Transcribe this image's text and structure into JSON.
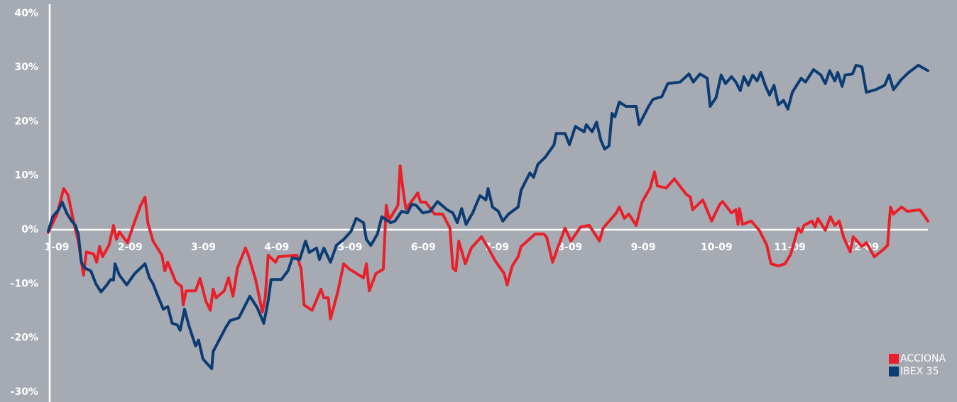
{
  "chart_data": {
    "type": "line",
    "ylim": [
      -30,
      40
    ],
    "yticks": [
      {
        "value": -30,
        "label": "-30%"
      },
      {
        "value": -20,
        "label": "-20%"
      },
      {
        "value": -10,
        "label": "-10%"
      },
      {
        "value": 0,
        "label": "0%"
      },
      {
        "value": 10,
        "label": "10%"
      },
      {
        "value": 20,
        "label": "20%"
      },
      {
        "value": 30,
        "label": "30%"
      },
      {
        "value": 40,
        "label": "40%"
      }
    ],
    "xlim": [
      0,
      12
    ],
    "xticks": [
      {
        "value": 0,
        "label": "1-09"
      },
      {
        "value": 1,
        "label": "2-09"
      },
      {
        "value": 2,
        "label": "3-09"
      },
      {
        "value": 3,
        "label": "4-09"
      },
      {
        "value": 4,
        "label": "5-09"
      },
      {
        "value": 5,
        "label": "6-09"
      },
      {
        "value": 6,
        "label": "7-09"
      },
      {
        "value": 7,
        "label": "8-09"
      },
      {
        "value": 8,
        "label": "9-09"
      },
      {
        "value": 9,
        "label": "10-09"
      },
      {
        "value": 10,
        "label": "11-09"
      },
      {
        "value": 11,
        "label": "12-09"
      }
    ],
    "legend": "lower right",
    "series": [
      {
        "name": "ACCIONA",
        "color": "#e8202a",
        "x": [
          0,
          0.12,
          0.21,
          0.27,
          0.35,
          0.41,
          0.48,
          0.52,
          0.62,
          0.66,
          0.7,
          0.74,
          0.83,
          0.89,
          0.93,
          0.97,
          1.08,
          1.16,
          1.26,
          1.32,
          1.36,
          1.43,
          1.55,
          1.59,
          1.63,
          1.74,
          1.82,
          1.84,
          1.88,
          2.01,
          2.07,
          2.15,
          2.21,
          2.25,
          2.29,
          2.4,
          2.46,
          2.52,
          2.58,
          2.69,
          2.73,
          2.83,
          2.92,
          2.96,
          3.0,
          3.1,
          3.14,
          3.39,
          3.45,
          3.49,
          3.6,
          3.72,
          3.76,
          3.82,
          3.85,
          3.95,
          4.03,
          4.11,
          4.3,
          4.34,
          4.38,
          4.47,
          4.57,
          4.61,
          4.65,
          4.77,
          4.8,
          4.84,
          4.88,
          5.04,
          5.08,
          5.15,
          5.27,
          5.38,
          5.48,
          5.52,
          5.56,
          5.6,
          5.69,
          5.77,
          5.91,
          5.99,
          6.1,
          6.22,
          6.26,
          6.33,
          6.41,
          6.45,
          6.64,
          6.76,
          6.8,
          6.88,
          6.93,
          7.05,
          7.13,
          7.26,
          7.38,
          7.52,
          7.57,
          7.75,
          7.79,
          7.86,
          7.92,
          8.02,
          8.1,
          8.21,
          8.27,
          8.31,
          8.43,
          8.54,
          8.7,
          8.76,
          8.79,
          8.93,
          9.05,
          9.16,
          9.2,
          9.32,
          9.38,
          9.41,
          9.43,
          9.47,
          9.59,
          9.7,
          9.8,
          9.86,
          9.96,
          10.05,
          10.13,
          10.23,
          10.27,
          10.31,
          10.42,
          10.46,
          10.5,
          10.6,
          10.67,
          10.73,
          10.79,
          10.85,
          10.94,
          10.98,
          11.1,
          11.16,
          11.27,
          11.39,
          11.45,
          11.49,
          11.53,
          11.64,
          11.72,
          11.89,
          11.95,
          12.0
        ],
        "values": [
          -0.5,
          2.9,
          7.6,
          6.4,
          1.2,
          -2.1,
          -8.4,
          -4.1,
          -4.5,
          -6.0,
          -3.1,
          -5.0,
          -2.8,
          0.8,
          -1.8,
          -0.4,
          -2.4,
          0.8,
          4.5,
          6.0,
          1.2,
          -2.1,
          -4.7,
          -7.6,
          -6.0,
          -9.7,
          -10.5,
          -13.9,
          -11.3,
          -11.3,
          -9.0,
          -13.2,
          -14.9,
          -11.0,
          -12.6,
          -11.3,
          -8.9,
          -12.3,
          -7.1,
          -3.4,
          -4.7,
          -9.3,
          -15.2,
          -12.6,
          -4.7,
          -6.0,
          -5.0,
          -4.7,
          -7.3,
          -13.9,
          -14.9,
          -11.0,
          -12.6,
          -12.6,
          -16.5,
          -11.5,
          -6.3,
          -7.3,
          -8.9,
          -6.3,
          -11.3,
          -8.1,
          -7.3,
          4.5,
          1.8,
          4.5,
          11.8,
          7.3,
          3.8,
          6.8,
          5.1,
          5.1,
          2.9,
          2.9,
          0.3,
          -7.1,
          -7.6,
          -2.1,
          -6.3,
          -3.4,
          -1.3,
          -3.1,
          -5.8,
          -8.1,
          -10.2,
          -6.7,
          -5.0,
          -3.1,
          -0.8,
          -0.8,
          -1.4,
          -6.0,
          -4.1,
          0.3,
          -2.1,
          0.5,
          0.8,
          -2.1,
          0.3,
          3.1,
          4.2,
          2.1,
          2.9,
          0.8,
          5.1,
          7.7,
          10.7,
          8.1,
          7.7,
          9.4,
          6.6,
          6.0,
          3.7,
          5.5,
          1.6,
          4.7,
          5.2,
          3.1,
          3.7,
          1.0,
          3.9,
          1.0,
          1.6,
          -0.1,
          -2.8,
          -6.3,
          -6.7,
          -6.3,
          -4.5,
          0.3,
          -0.5,
          0.8,
          1.6,
          0.5,
          2.1,
          -0.1,
          2.4,
          0.8,
          1.6,
          -1.4,
          -4.1,
          -1.3,
          -3.1,
          -2.4,
          -5.0,
          -3.7,
          -2.9,
          4.2,
          2.9,
          4.2,
          3.4,
          3.7,
          2.6,
          1.6
        ]
      },
      {
        "name": "IBEX 35",
        "color": "#0b3c73",
        "x": [
          0,
          0.06,
          0.14,
          0.19,
          0.25,
          0.31,
          0.37,
          0.41,
          0.45,
          0.5,
          0.58,
          0.65,
          0.72,
          0.8,
          0.85,
          0.89,
          0.91,
          0.97,
          1.07,
          1.18,
          1.32,
          1.38,
          1.43,
          1.49,
          1.57,
          1.63,
          1.69,
          1.76,
          1.8,
          1.86,
          1.92,
          2.01,
          2.05,
          2.11,
          2.23,
          2.25,
          2.3,
          2.42,
          2.48,
          2.6,
          2.75,
          2.85,
          2.94,
          3.0,
          3.04,
          3.18,
          3.27,
          3.33,
          3.43,
          3.51,
          3.56,
          3.66,
          3.7,
          3.76,
          3.85,
          3.93,
          4.03,
          4.13,
          4.2,
          4.3,
          4.34,
          4.4,
          4.49,
          4.55,
          4.67,
          4.73,
          4.82,
          4.9,
          4.96,
          5.02,
          5.11,
          5.21,
          5.31,
          5.44,
          5.52,
          5.58,
          5.64,
          5.7,
          5.79,
          5.89,
          5.97,
          6.0,
          6.06,
          6.14,
          6.2,
          6.28,
          6.41,
          6.45,
          6.57,
          6.62,
          6.68,
          6.78,
          6.9,
          6.93,
          7.05,
          7.11,
          7.19,
          7.31,
          7.34,
          7.42,
          7.48,
          7.54,
          7.59,
          7.65,
          7.69,
          7.73,
          7.79,
          7.88,
          8.02,
          8.06,
          8.14,
          8.19,
          8.25,
          8.37,
          8.45,
          8.62,
          8.74,
          8.8,
          8.89,
          8.99,
          9.03,
          9.11,
          9.18,
          9.24,
          9.32,
          9.38,
          9.44,
          9.49,
          9.55,
          9.61,
          9.67,
          9.72,
          9.78,
          9.84,
          9.9,
          9.96,
          10.03,
          10.09,
          10.15,
          10.27,
          10.33,
          10.44,
          10.54,
          10.6,
          10.66,
          10.73,
          10.77,
          10.83,
          10.87,
          10.97,
          11.02,
          11.1,
          11.16,
          11.29,
          11.41,
          11.47,
          11.53,
          11.64,
          11.74,
          11.87,
          12.0
        ],
        "values": [
          -0.3,
          2.4,
          3.7,
          5.1,
          3.1,
          1.8,
          0.8,
          -0.8,
          -6.0,
          -7.1,
          -7.6,
          -10.0,
          -11.5,
          -10.2,
          -9.2,
          -9.3,
          -6.3,
          -8.4,
          -10.2,
          -8.1,
          -6.3,
          -8.9,
          -10.0,
          -12.1,
          -14.7,
          -14.2,
          -17.3,
          -17.6,
          -18.6,
          -14.7,
          -17.8,
          -21.5,
          -20.4,
          -23.9,
          -25.7,
          -22.5,
          -21.2,
          -18.1,
          -16.8,
          -16.3,
          -12.3,
          -14.4,
          -17.3,
          -13.1,
          -9.2,
          -9.2,
          -7.6,
          -5.2,
          -5.5,
          -2.1,
          -4.2,
          -3.4,
          -5.5,
          -3.4,
          -6.0,
          -2.9,
          -1.8,
          -0.3,
          2.1,
          1.3,
          -1.8,
          -2.9,
          -0.8,
          2.4,
          1.3,
          1.6,
          3.4,
          3.1,
          4.7,
          4.5,
          3.1,
          3.4,
          5.2,
          3.7,
          3.1,
          1.3,
          3.9,
          1.0,
          3.1,
          6.3,
          5.5,
          7.6,
          4.2,
          3.4,
          1.6,
          2.9,
          4.2,
          7.3,
          10.5,
          9.7,
          12.1,
          13.4,
          15.7,
          17.8,
          17.8,
          15.7,
          19.1,
          18.1,
          19.4,
          18.1,
          19.9,
          16.5,
          14.9,
          15.5,
          21.5,
          20.9,
          23.6,
          22.8,
          22.8,
          19.4,
          21.5,
          22.8,
          24.1,
          24.6,
          27.0,
          27.3,
          28.8,
          27.3,
          28.8,
          28.0,
          22.8,
          24.4,
          28.6,
          27.0,
          28.3,
          27.3,
          25.7,
          28.3,
          26.7,
          28.6,
          27.5,
          29.1,
          26.7,
          24.9,
          26.7,
          23.1,
          23.9,
          22.3,
          25.4,
          28.0,
          27.3,
          29.6,
          28.6,
          27.0,
          29.4,
          27.5,
          29.1,
          26.5,
          28.6,
          28.8,
          30.4,
          30.1,
          25.4,
          25.9,
          26.7,
          28.6,
          25.9,
          27.8,
          29.1,
          30.4,
          29.4
        ]
      }
    ]
  }
}
